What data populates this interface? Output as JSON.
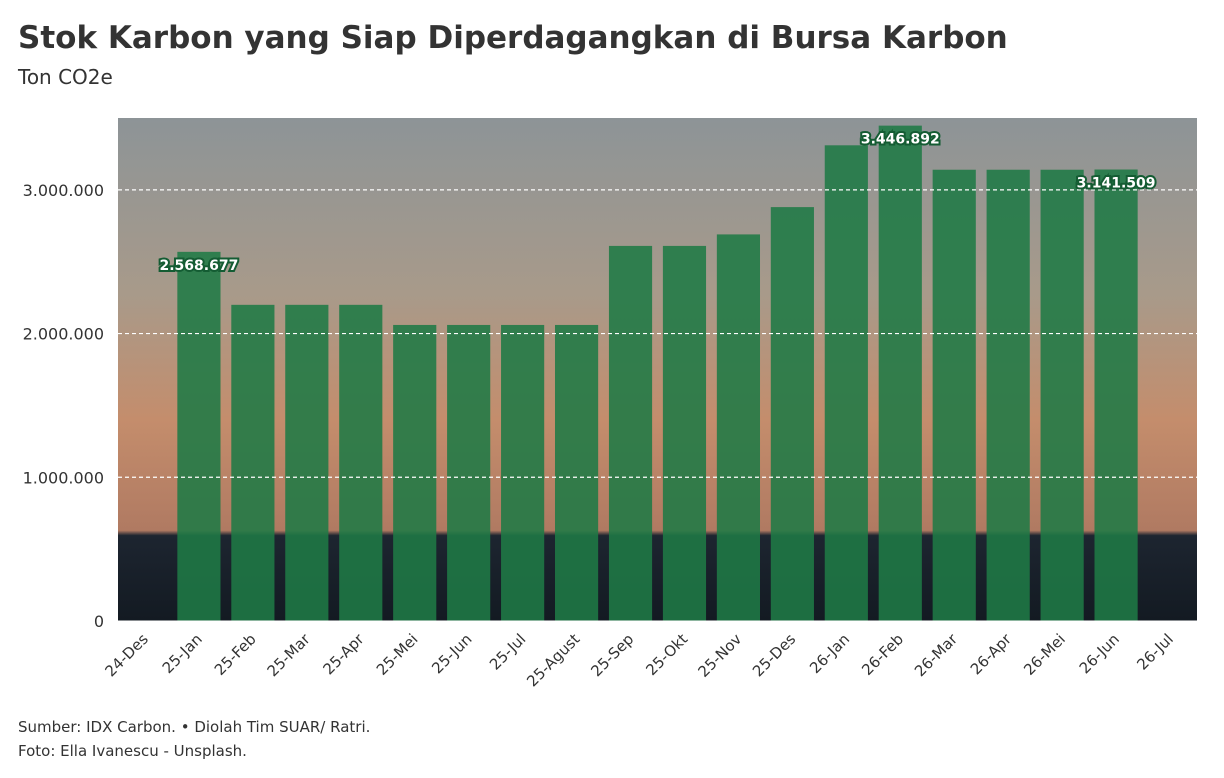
{
  "chart_data": {
    "type": "bar",
    "title": "Stok Karbon yang Siap Diperdagangkan di Bursa Karbon",
    "subtitle": "Ton CO2e",
    "categories": [
      "24-Des",
      "25-Jan",
      "25-Feb",
      "25-Mar",
      "25-Apr",
      "25-Mei",
      "25-Jun",
      "25-Jul",
      "25-Agust",
      "25-Sep",
      "25-Okt",
      "25-Nov",
      "25-Des",
      "26-Jan",
      "26-Feb",
      "26-Mar",
      "26-Apr",
      "26-Mei",
      "26-Jun",
      "26-Jul"
    ],
    "values": [
      null,
      2568677,
      2200000,
      2200000,
      2200000,
      2060000,
      2060000,
      2060000,
      2060000,
      2610000,
      2610000,
      2690000,
      2880000,
      3310000,
      3446892,
      3140000,
      3140000,
      3140000,
      3141509,
      null
    ],
    "value_labels": [
      null,
      "2.568.677",
      null,
      null,
      null,
      null,
      null,
      null,
      null,
      null,
      null,
      null,
      null,
      null,
      "3.446.892",
      null,
      null,
      null,
      "3.141.509",
      null
    ],
    "color": "#1f7a45",
    "ylim": [
      0,
      3500000
    ],
    "yticks": [
      0,
      {
        "value": 1000000,
        "label": "1.000.000"
      },
      {
        "value": 2000000,
        "label": "2.000.000"
      },
      {
        "value": 3000000,
        "label": "3.000.000"
      }
    ],
    "grid": true,
    "source": "Sumber: IDX Carbon. • Diolah Tim SUAR/ Ratri.",
    "photo_credit": "Foto: Ella Ivanescu - Unsplash."
  }
}
